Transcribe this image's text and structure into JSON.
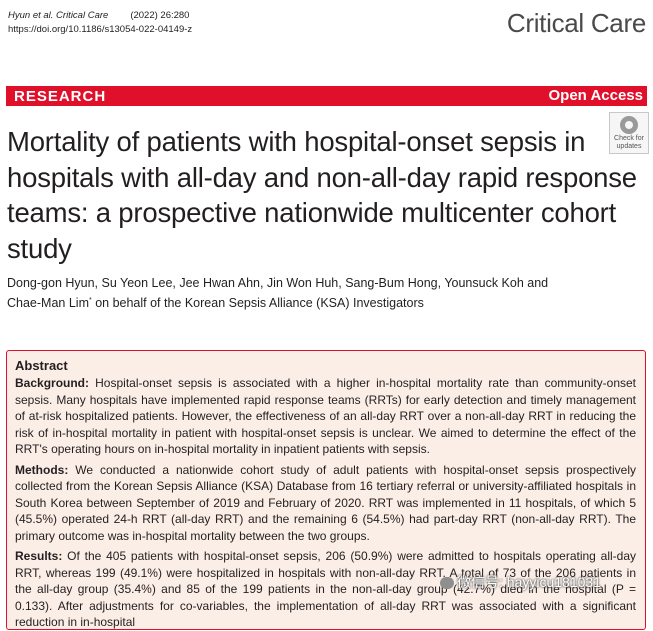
{
  "header": {
    "authors_cite": "Hyun et al. Critical Care",
    "year_vol": "(2022) 26:280",
    "doi": "https://doi.org/10.1186/s13054-022-04149-z",
    "journal": "Critical Care"
  },
  "banner": {
    "label": "RESEARCH",
    "open_access": "Open Access"
  },
  "updates_badge": {
    "line1": "Check for",
    "line2": "updates"
  },
  "title": "Mortality of patients with hospital-onset sepsis in hospitals with all-day and non-all-day rapid response teams: a prospective nationwide multicenter cohort study",
  "authors": {
    "line1": "Dong-gon Hyun, Su Yeon Lee, Jee Hwan Ahn, Jin Won Huh, Sang-Bum Hong, Younsuck Koh and",
    "line2_name": "Chae-Man Lim",
    "line2_mark": "*",
    "line2_rest": " on behalf of the Korean Sepsis Alliance (KSA) Investigators"
  },
  "abstract": {
    "heading": "Abstract",
    "background_label": "Background:",
    "background_text": "Hospital-onset sepsis is associated with a higher in-hospital mortality rate than community-onset sepsis. Many hospitals have implemented rapid response teams (RRTs) for early detection and timely management of at-risk hospitalized patients. However, the effectiveness of an all-day RRT over a non-all-day RRT in reducing the risk of in-hospital mortality in patient with hospital-onset sepsis is unclear. We aimed to determine the effect of the RRT's operating hours on in-hospital mortality in inpatient patients with sepsis.",
    "methods_label": "Methods:",
    "methods_text": "We conducted a nationwide cohort study of adult patients with hospital-onset sepsis prospectively collected from the Korean Sepsis Alliance (KSA) Database from 16 tertiary referral or university-affiliated hospitals in South Korea between September of 2019 and February of 2020. RRT was implemented in 11 hospitals, of which 5 (45.5%) operated 24-h RRT (all-day RRT) and the remaining 6 (54.5%) had part-day RRT (non-all-day RRT). The primary outcome was in-hospital mortality between the two groups.",
    "results_label": "Results:",
    "results_text": "Of the 405 patients with hospital-onset sepsis, 206 (50.9%) were admitted to hospitals operating all-day RRT, whereas 199 (49.1%) were hospitalized in hospitals with non-all-day RRT. A total of 73 of the 206 patients in the all-day group (35.4%) and 85 of the 199 patients in the non-all-day group (42.7%) died in the hospital (P = 0.133). After adjustments for co-variables, the implementation of all-day RRT was associated with a significant reduction in in-hospital"
  },
  "watermark": {
    "text": "微信号: hayyicu181031"
  }
}
